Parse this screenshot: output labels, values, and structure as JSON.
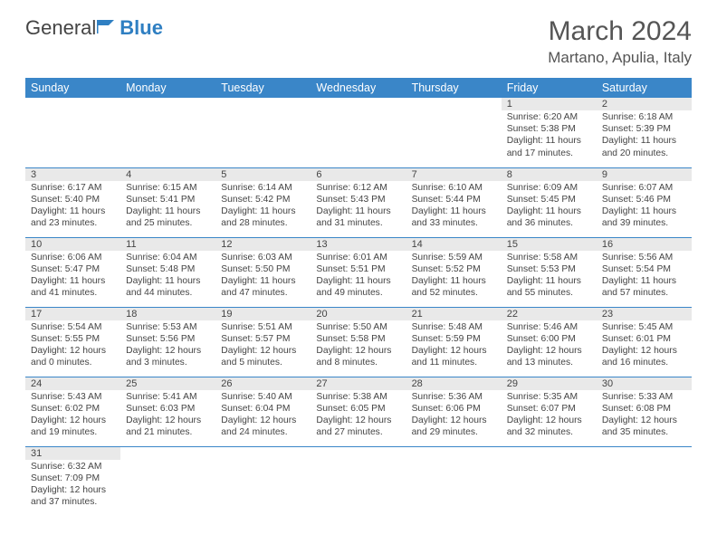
{
  "brand": {
    "part1": "General",
    "part2": "Blue"
  },
  "title": "March 2024",
  "location": "Martano, Apulia, Italy",
  "colors": {
    "header_bg": "#3a86c8",
    "header_text": "#ffffff",
    "daynum_bg": "#e9e9e9",
    "row_border": "#3a86c8",
    "brand_accent": "#2f7fc2",
    "text": "#444444",
    "page_bg": "#ffffff"
  },
  "weekdays": [
    "Sunday",
    "Monday",
    "Tuesday",
    "Wednesday",
    "Thursday",
    "Friday",
    "Saturday"
  ],
  "weeks": [
    [
      null,
      null,
      null,
      null,
      null,
      {
        "n": "1",
        "sr": "Sunrise: 6:20 AM",
        "ss": "Sunset: 5:38 PM",
        "d1": "Daylight: 11 hours",
        "d2": "and 17 minutes."
      },
      {
        "n": "2",
        "sr": "Sunrise: 6:18 AM",
        "ss": "Sunset: 5:39 PM",
        "d1": "Daylight: 11 hours",
        "d2": "and 20 minutes."
      }
    ],
    [
      {
        "n": "3",
        "sr": "Sunrise: 6:17 AM",
        "ss": "Sunset: 5:40 PM",
        "d1": "Daylight: 11 hours",
        "d2": "and 23 minutes."
      },
      {
        "n": "4",
        "sr": "Sunrise: 6:15 AM",
        "ss": "Sunset: 5:41 PM",
        "d1": "Daylight: 11 hours",
        "d2": "and 25 minutes."
      },
      {
        "n": "5",
        "sr": "Sunrise: 6:14 AM",
        "ss": "Sunset: 5:42 PM",
        "d1": "Daylight: 11 hours",
        "d2": "and 28 minutes."
      },
      {
        "n": "6",
        "sr": "Sunrise: 6:12 AM",
        "ss": "Sunset: 5:43 PM",
        "d1": "Daylight: 11 hours",
        "d2": "and 31 minutes."
      },
      {
        "n": "7",
        "sr": "Sunrise: 6:10 AM",
        "ss": "Sunset: 5:44 PM",
        "d1": "Daylight: 11 hours",
        "d2": "and 33 minutes."
      },
      {
        "n": "8",
        "sr": "Sunrise: 6:09 AM",
        "ss": "Sunset: 5:45 PM",
        "d1": "Daylight: 11 hours",
        "d2": "and 36 minutes."
      },
      {
        "n": "9",
        "sr": "Sunrise: 6:07 AM",
        "ss": "Sunset: 5:46 PM",
        "d1": "Daylight: 11 hours",
        "d2": "and 39 minutes."
      }
    ],
    [
      {
        "n": "10",
        "sr": "Sunrise: 6:06 AM",
        "ss": "Sunset: 5:47 PM",
        "d1": "Daylight: 11 hours",
        "d2": "and 41 minutes."
      },
      {
        "n": "11",
        "sr": "Sunrise: 6:04 AM",
        "ss": "Sunset: 5:48 PM",
        "d1": "Daylight: 11 hours",
        "d2": "and 44 minutes."
      },
      {
        "n": "12",
        "sr": "Sunrise: 6:03 AM",
        "ss": "Sunset: 5:50 PM",
        "d1": "Daylight: 11 hours",
        "d2": "and 47 minutes."
      },
      {
        "n": "13",
        "sr": "Sunrise: 6:01 AM",
        "ss": "Sunset: 5:51 PM",
        "d1": "Daylight: 11 hours",
        "d2": "and 49 minutes."
      },
      {
        "n": "14",
        "sr": "Sunrise: 5:59 AM",
        "ss": "Sunset: 5:52 PM",
        "d1": "Daylight: 11 hours",
        "d2": "and 52 minutes."
      },
      {
        "n": "15",
        "sr": "Sunrise: 5:58 AM",
        "ss": "Sunset: 5:53 PM",
        "d1": "Daylight: 11 hours",
        "d2": "and 55 minutes."
      },
      {
        "n": "16",
        "sr": "Sunrise: 5:56 AM",
        "ss": "Sunset: 5:54 PM",
        "d1": "Daylight: 11 hours",
        "d2": "and 57 minutes."
      }
    ],
    [
      {
        "n": "17",
        "sr": "Sunrise: 5:54 AM",
        "ss": "Sunset: 5:55 PM",
        "d1": "Daylight: 12 hours",
        "d2": "and 0 minutes."
      },
      {
        "n": "18",
        "sr": "Sunrise: 5:53 AM",
        "ss": "Sunset: 5:56 PM",
        "d1": "Daylight: 12 hours",
        "d2": "and 3 minutes."
      },
      {
        "n": "19",
        "sr": "Sunrise: 5:51 AM",
        "ss": "Sunset: 5:57 PM",
        "d1": "Daylight: 12 hours",
        "d2": "and 5 minutes."
      },
      {
        "n": "20",
        "sr": "Sunrise: 5:50 AM",
        "ss": "Sunset: 5:58 PM",
        "d1": "Daylight: 12 hours",
        "d2": "and 8 minutes."
      },
      {
        "n": "21",
        "sr": "Sunrise: 5:48 AM",
        "ss": "Sunset: 5:59 PM",
        "d1": "Daylight: 12 hours",
        "d2": "and 11 minutes."
      },
      {
        "n": "22",
        "sr": "Sunrise: 5:46 AM",
        "ss": "Sunset: 6:00 PM",
        "d1": "Daylight: 12 hours",
        "d2": "and 13 minutes."
      },
      {
        "n": "23",
        "sr": "Sunrise: 5:45 AM",
        "ss": "Sunset: 6:01 PM",
        "d1": "Daylight: 12 hours",
        "d2": "and 16 minutes."
      }
    ],
    [
      {
        "n": "24",
        "sr": "Sunrise: 5:43 AM",
        "ss": "Sunset: 6:02 PM",
        "d1": "Daylight: 12 hours",
        "d2": "and 19 minutes."
      },
      {
        "n": "25",
        "sr": "Sunrise: 5:41 AM",
        "ss": "Sunset: 6:03 PM",
        "d1": "Daylight: 12 hours",
        "d2": "and 21 minutes."
      },
      {
        "n": "26",
        "sr": "Sunrise: 5:40 AM",
        "ss": "Sunset: 6:04 PM",
        "d1": "Daylight: 12 hours",
        "d2": "and 24 minutes."
      },
      {
        "n": "27",
        "sr": "Sunrise: 5:38 AM",
        "ss": "Sunset: 6:05 PM",
        "d1": "Daylight: 12 hours",
        "d2": "and 27 minutes."
      },
      {
        "n": "28",
        "sr": "Sunrise: 5:36 AM",
        "ss": "Sunset: 6:06 PM",
        "d1": "Daylight: 12 hours",
        "d2": "and 29 minutes."
      },
      {
        "n": "29",
        "sr": "Sunrise: 5:35 AM",
        "ss": "Sunset: 6:07 PM",
        "d1": "Daylight: 12 hours",
        "d2": "and 32 minutes."
      },
      {
        "n": "30",
        "sr": "Sunrise: 5:33 AM",
        "ss": "Sunset: 6:08 PM",
        "d1": "Daylight: 12 hours",
        "d2": "and 35 minutes."
      }
    ],
    [
      {
        "n": "31",
        "sr": "Sunrise: 6:32 AM",
        "ss": "Sunset: 7:09 PM",
        "d1": "Daylight: 12 hours",
        "d2": "and 37 minutes."
      },
      null,
      null,
      null,
      null,
      null,
      null
    ]
  ]
}
